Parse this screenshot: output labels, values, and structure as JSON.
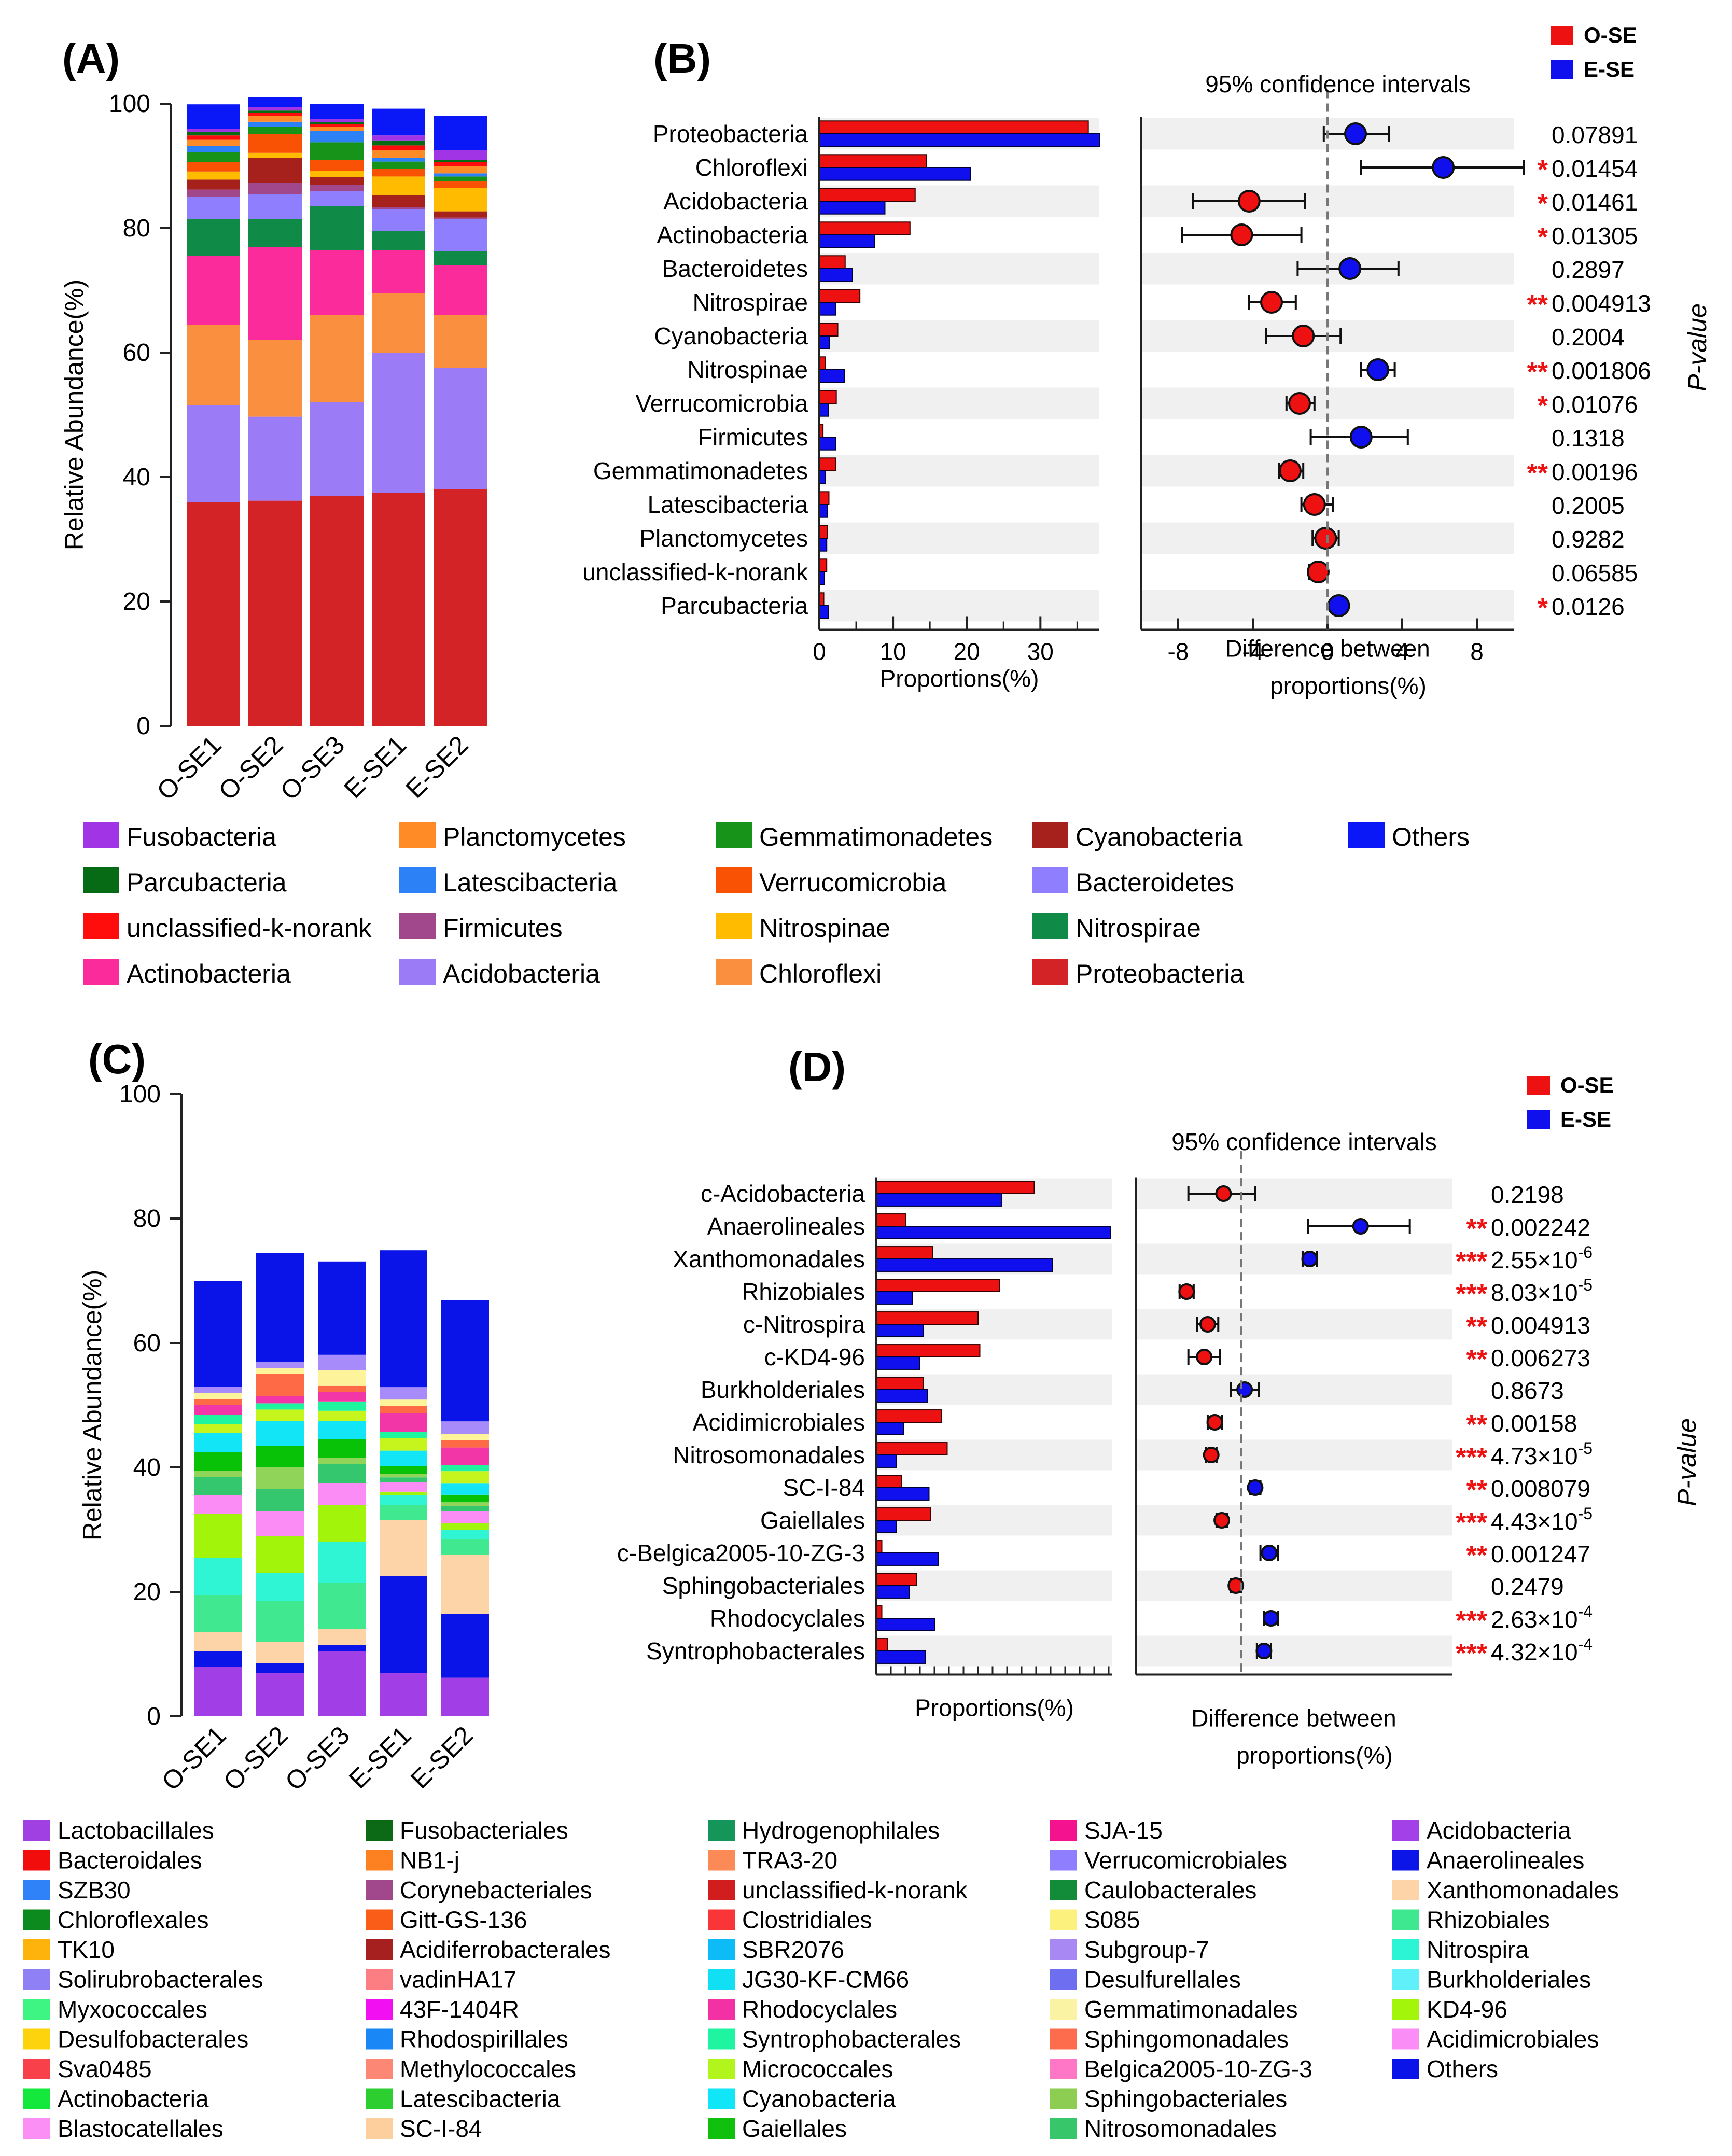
{
  "panels": {
    "a": "(A)",
    "b": "(B)",
    "c": "(C)",
    "d": "(D)"
  },
  "common": {
    "ylabel": "Relative  Abundance(%)",
    "samples": [
      "O-SE1",
      "O-SE2",
      "O-SE3",
      "E-SE1",
      "E-SE2"
    ],
    "ci_title": "95% confidence   intervals",
    "proportions_label": "Proportions(%)",
    "diff_label_1": "Difference   between",
    "diff_label_2": "proportions(%)",
    "pvalue_label": "P-value",
    "legend_ose": "O-SE",
    "legend_ese": "E-SE",
    "color_ose": "#ee1111",
    "color_ese": "#1010ee"
  },
  "chart_data": [
    {
      "id": "A",
      "type": "stacked-bar",
      "ylabel": "Relative  Abundance(%)",
      "ylim": [
        0,
        100
      ],
      "yticks": [
        0,
        20,
        40,
        60,
        80,
        100
      ],
      "categories": [
        "O-SE1",
        "O-SE2",
        "O-SE3",
        "E-SE1",
        "E-SE2"
      ],
      "series": [
        {
          "name": "Proteobacteria",
          "color": "#d42326",
          "values": [
            36,
            36.2,
            37,
            37.5,
            38
          ]
        },
        {
          "name": "Acidobacteria",
          "color": "#9b7cf6",
          "values": [
            15.5,
            13.5,
            15,
            22.5,
            19.5
          ]
        },
        {
          "name": "Chloroflexi",
          "color": "#fa8f3f",
          "values": [
            13,
            12.3,
            14,
            9.5,
            8.5
          ]
        },
        {
          "name": "Actinobacteria",
          "color": "#fc2b9c",
          "values": [
            11,
            15,
            10.5,
            7,
            8
          ]
        },
        {
          "name": "Nitrospirae",
          "color": "#0f8a47",
          "values": [
            6,
            4.5,
            7,
            3,
            2.3
          ]
        },
        {
          "name": "Bacteroidetes",
          "color": "#8f7ffe",
          "values": [
            3.5,
            4,
            2.5,
            3.5,
            5.2
          ]
        },
        {
          "name": "Firmicutes",
          "color": "#a1478c",
          "values": [
            1.2,
            1.8,
            1.0,
            0.4,
            0.2
          ]
        },
        {
          "name": "Cyanobacteria",
          "color": "#a6211c",
          "values": [
            1.6,
            4,
            1.2,
            1.9,
            1.0
          ]
        },
        {
          "name": "Nitrospinae",
          "color": "#ffbb00",
          "values": [
            1.3,
            0.8,
            1.0,
            3.0,
            3.8
          ]
        },
        {
          "name": "Verrucomicrobia",
          "color": "#fa5205",
          "values": [
            1.5,
            3,
            1.8,
            1.2,
            1.0
          ]
        },
        {
          "name": "Gemmatimonadetes",
          "color": "#18931a",
          "values": [
            1.6,
            1.2,
            2.8,
            1.2,
            0.8
          ]
        },
        {
          "name": "Latescibacteria",
          "color": "#2d81f7",
          "values": [
            1.0,
            0.8,
            1.8,
            0.6,
            0.5
          ]
        },
        {
          "name": "Planctomycetes",
          "color": "#fe8b26",
          "values": [
            1.0,
            0.9,
            0.7,
            1.2,
            1.2
          ]
        },
        {
          "name": "unclassified-k-norank",
          "color": "#ff0d0d",
          "values": [
            0.7,
            0.5,
            0.4,
            0.8,
            0.6
          ]
        },
        {
          "name": "Parcubacteria",
          "color": "#076b16",
          "values": [
            0.6,
            0.4,
            0.3,
            0.8,
            0.4
          ]
        },
        {
          "name": "Fusobacteria",
          "color": "#a134e4",
          "values": [
            0.5,
            0.6,
            0.5,
            0.8,
            1.5
          ]
        },
        {
          "name": "Others",
          "color": "#0a18f7",
          "values": [
            3.9,
            1.5,
            2.5,
            4.3,
            5.5
          ]
        }
      ],
      "legend_order": [
        "Fusobacteria",
        "Parcubacteria",
        "unclassified-k-norank",
        "Actinobacteria",
        "Planctomycetes",
        "Latescibacteria",
        "Firmicutes",
        "Acidobacteria",
        "Gemmatimonadetes",
        "Verrucomicrobia",
        "Nitrospinae",
        "Chloroflexi",
        "Cyanobacteria",
        "Bacteroidetes",
        "Nitrospirae",
        "Proteobacteria",
        "Others"
      ]
    },
    {
      "id": "B",
      "type": "extended-error-bar",
      "taxa": [
        "Proteobacteria",
        "Chloroflexi",
        "Acidobacteria",
        "Actinobacteria",
        "Bacteroidetes",
        "Nitrospirae",
        "Cyanobacteria",
        "Nitrospinae",
        "Verrucomicrobia",
        "Firmicutes",
        "Gemmatimonadetes",
        "Latescibacteria",
        "Planctomycetes",
        "unclassified-k-norank",
        "Parcubacteria"
      ],
      "ose": [
        36.5,
        14.5,
        13,
        12.3,
        3.5,
        5.5,
        2.5,
        0.8,
        2.3,
        0.5,
        2.2,
        1.3,
        1.1,
        1.0,
        0.6
      ],
      "ese": [
        38,
        20.5,
        8.9,
        7.5,
        4.5,
        2.2,
        1.4,
        3.4,
        1.2,
        2.2,
        0.8,
        1.1,
        1.0,
        0.7,
        1.2
      ],
      "diff": [
        1.5,
        6.2,
        -4.2,
        -4.6,
        1.2,
        -3.0,
        -1.3,
        2.7,
        -1.5,
        1.8,
        -2.0,
        -0.7,
        -0.1,
        -0.5,
        0.6
      ],
      "ci_low": [
        -0.2,
        1.8,
        -7.2,
        -7.8,
        -1.6,
        -4.2,
        -3.3,
        1.8,
        -2.2,
        -0.9,
        -2.6,
        -1.4,
        -0.8,
        -1.0,
        0.2
      ],
      "ci_high": [
        3.3,
        10.5,
        -1.2,
        -1.4,
        3.8,
        -1.7,
        0.7,
        3.6,
        -0.7,
        4.3,
        -1.3,
        0.3,
        0.6,
        0.0,
        0.9
      ],
      "pvalues": [
        "0.07891",
        "0.01454",
        "0.01461",
        "0.01305",
        "0.2897",
        "0.004913",
        "0.2004",
        "0.001806",
        "0.01076",
        "0.1318",
        "0.00196",
        "0.2005",
        "0.9282",
        "0.06585",
        "0.0126"
      ],
      "stars": [
        "",
        "*",
        "*",
        "*",
        "",
        "**",
        "",
        "**",
        "*",
        "",
        "**",
        "",
        "",
        "",
        "*"
      ],
      "prop_xlim": [
        0,
        38
      ],
      "prop_ticks": [
        0,
        10,
        20,
        30
      ],
      "diff_xlim": [
        -10,
        10
      ],
      "diff_ticks": [
        -8,
        -4,
        0,
        4,
        8
      ]
    },
    {
      "id": "C",
      "type": "stacked-bar",
      "ylabel": "Relative  Abundance(%)",
      "ylim": [
        0,
        100
      ],
      "yticks": [
        0,
        20,
        40,
        60,
        80,
        100
      ],
      "categories": [
        "O-SE1",
        "O-SE2",
        "O-SE3",
        "E-SE1",
        "E-SE2"
      ],
      "series": [
        {
          "name": "Acidobacteria",
          "color": "#a13ee6",
          "values": [
            8,
            7,
            10.5,
            7,
            6.2
          ]
        },
        {
          "name": "Anaerolineales",
          "color": "#0a14e8",
          "values": [
            2.5,
            1.5,
            1.0,
            15.5,
            10.3
          ]
        },
        {
          "name": "Xanthomonadales",
          "color": "#fdd4a8",
          "values": [
            3,
            3.5,
            2.5,
            9.0,
            9.5
          ]
        },
        {
          "name": "Rhizobiales",
          "color": "#40e890",
          "values": [
            6,
            6.5,
            7.5,
            2.5,
            2.5
          ]
        },
        {
          "name": "Nitrospira",
          "color": "#2ff5d5",
          "values": [
            6,
            4.5,
            6.5,
            1.5,
            1.5
          ]
        },
        {
          "name": "KD4-96",
          "color": "#a2f50a",
          "values": [
            7,
            6,
            6,
            0.6,
            1.0
          ]
        },
        {
          "name": "Acidimicrobiales",
          "color": "#fb8cf6",
          "values": [
            3,
            4,
            3.5,
            1.5,
            2.0
          ]
        },
        {
          "name": "Nitrosomonadales",
          "color": "#35c76d",
          "values": [
            3,
            3.5,
            3,
            0.8,
            0.8
          ]
        },
        {
          "name": "Sphingobacteriales",
          "color": "#90d45a",
          "values": [
            1,
            3.5,
            1,
            0.6,
            0.6
          ]
        },
        {
          "name": "Gaiellales",
          "color": "#08c208",
          "values": [
            3,
            3.5,
            3,
            1.2,
            1.2
          ]
        },
        {
          "name": "Cyanobacteria",
          "color": "#12e6f6",
          "values": [
            3,
            4,
            3,
            2.5,
            1.8
          ]
        },
        {
          "name": "Micrococcales",
          "color": "#c6f51d",
          "values": [
            1.5,
            1.8,
            1.6,
            2.0,
            2.0
          ]
        },
        {
          "name": "Syntrophobacterales",
          "color": "#1ff59e",
          "values": [
            1.5,
            1.0,
            1.5,
            1.0,
            1.0
          ]
        },
        {
          "name": "Rhodocyclales",
          "color": "#f336a7",
          "values": [
            1.5,
            1.2,
            1.5,
            3.0,
            2.8
          ]
        },
        {
          "name": "Sphingomonadales",
          "color": "#fd6a45",
          "values": [
            1.0,
            3.5,
            1.0,
            1.2,
            1.2
          ]
        },
        {
          "name": "Gemmatimonadales",
          "color": "#fdf39a",
          "values": [
            1.0,
            1.0,
            2.5,
            1.0,
            1.0
          ]
        },
        {
          "name": "Desulfurellales",
          "color": "#a78bfa",
          "values": [
            1.0,
            1.0,
            2.5,
            2.0,
            2.0
          ]
        },
        {
          "name": "Others",
          "color": "#0a14e8",
          "values": [
            17,
            17.5,
            15,
            22,
            19.5
          ]
        }
      ],
      "legend_order": [
        "Lactobacillales",
        "Bacteroidales",
        "SZB30",
        "Chloroflexales",
        "TK10",
        "Solirubrobacterales",
        "Myxococcales",
        "Desulfobacterales",
        "Sva0485",
        "Actinobacteria",
        "Blastocatellales",
        "Fusobacteriales",
        "NB1-j",
        "Corynebacteriales",
        "Gitt-GS-136",
        "Acidiferrobacterales",
        "vadinHA17",
        "43F-1404R",
        "Rhodospirillales",
        "Methylococcales",
        "Latescibacteria",
        "SC-I-84",
        "Hydrogenophilales",
        "TRA3-20",
        "unclassified-k-norank",
        "Clostridiales",
        "SBR2076",
        "JG30-KF-CM66",
        "Rhodocyclales",
        "Syntrophobacterales",
        "Micrococcales",
        "Cyanobacteria",
        "Gaiellales",
        "SJA-15",
        "Verrucomicrobiales",
        "Caulobacterales",
        "S085",
        "Subgroup-7",
        "Desulfurellales",
        "Gemmatimonadales",
        "Sphingomonadales",
        "Belgica2005-10-ZG-3",
        "Sphingobacteriales",
        "Nitrosomonadales",
        "Acidobacteria",
        "Anaerolineales",
        "Xanthomonadales",
        "Rhizobiales",
        "Nitrospira",
        "Burkholderiales",
        "KD4-96",
        "Acidimicrobiales",
        "Others"
      ],
      "legend_colors": [
        "#a03fe2",
        "#f20d0d",
        "#2f82f7",
        "#0d8a1d",
        "#fdb20c",
        "#8f80f5",
        "#3ef583",
        "#fcd30c",
        "#f8404b",
        "#15e83d",
        "#fc8ff5",
        "#0c6a17",
        "#fd8120",
        "#a1478c",
        "#fa5d18",
        "#a5201f",
        "#fc7d82",
        "#f210f2",
        "#1a87f6",
        "#fc8774",
        "#2ccf2f",
        "#fdcf9c",
        "#14955a",
        "#fc8a56",
        "#d21d1e",
        "#fa3538",
        "#0dbbf6",
        "#11dff4",
        "#f331a5",
        "#1ff5a0",
        "#b2f51c",
        "#10e6f7",
        "#0fc10c",
        "#f5128e",
        "#8f7efd",
        "#138c3a",
        "#fcf17c",
        "#a889f4",
        "#6e6ef0",
        "#fbf3a4",
        "#fd6c4d",
        "#fd77c6",
        "#8dce52",
        "#37c76a",
        "#a440e8",
        "#0b15e8",
        "#fcd4a8",
        "#3ee891",
        "#2bf5d5",
        "#5ff0f9",
        "#a3f50a",
        "#fb8df6",
        "#0a14e8"
      ]
    },
    {
      "id": "D",
      "type": "extended-error-bar",
      "taxa": [
        "c-Acidobacteria",
        "Anaerolineales",
        "Xanthomonadales",
        "Rhizobiales",
        "c-Nitrospira",
        "c-KD4-96",
        "Burkholderiales",
        "Acidimicrobiales",
        "Nitrosomonadales",
        "SC-I-84",
        "Gaiellales",
        "c-Belgica2005-10-ZG-3",
        "Sphingobacteriales",
        "Rhodocyclales",
        "Syntrophobacterales"
      ],
      "ose": [
        8.7,
        1.6,
        3.1,
        6.8,
        5.6,
        5.7,
        2.6,
        3.6,
        3.9,
        1.4,
        3.0,
        0.3,
        2.2,
        0.3,
        0.6
      ],
      "ese": [
        6.9,
        12.9,
        9.7,
        2.0,
        2.6,
        2.4,
        2.8,
        1.5,
        1.1,
        2.9,
        1.1,
        3.4,
        1.8,
        3.2,
        2.7
      ],
      "diff": [
        -1.0,
        6.8,
        3.9,
        -3.1,
        -1.9,
        -2.1,
        0.2,
        -1.5,
        -1.7,
        0.8,
        -1.1,
        1.6,
        -0.3,
        1.7,
        1.3
      ],
      "ci_low": [
        -3.0,
        3.8,
        3.5,
        -3.5,
        -2.5,
        -3.0,
        -0.6,
        -1.9,
        -2.0,
        0.5,
        -1.4,
        1.1,
        -0.6,
        1.3,
        0.9
      ],
      "ci_high": [
        0.8,
        9.6,
        4.3,
        -2.7,
        -1.3,
        -1.2,
        1.0,
        -1.1,
        -1.4,
        1.1,
        -0.8,
        2.1,
        0.0,
        2.1,
        1.7
      ],
      "pvalues": [
        "0.2198",
        "0.002242",
        "2.55×10",
        "8.03×10",
        "0.004913",
        "0.006273",
        "0.8673",
        "0.00158",
        "4.73×10",
        "0.008079",
        "4.43×10",
        "0.001247",
        "0.2479",
        "2.63×10",
        "4.32×10"
      ],
      "exponents": [
        "",
        "",
        "-6",
        "-5",
        "",
        "",
        "",
        "",
        "-5",
        "",
        "-5",
        "",
        "",
        "-4",
        "-4"
      ],
      "stars": [
        "",
        "**",
        "***",
        "***",
        "**",
        "**",
        "",
        "**",
        "***",
        "**",
        "***",
        "**",
        "",
        "***",
        "***"
      ],
      "prop_xlim": [
        0,
        13
      ],
      "diff_xlim": [
        -6,
        12
      ]
    }
  ]
}
